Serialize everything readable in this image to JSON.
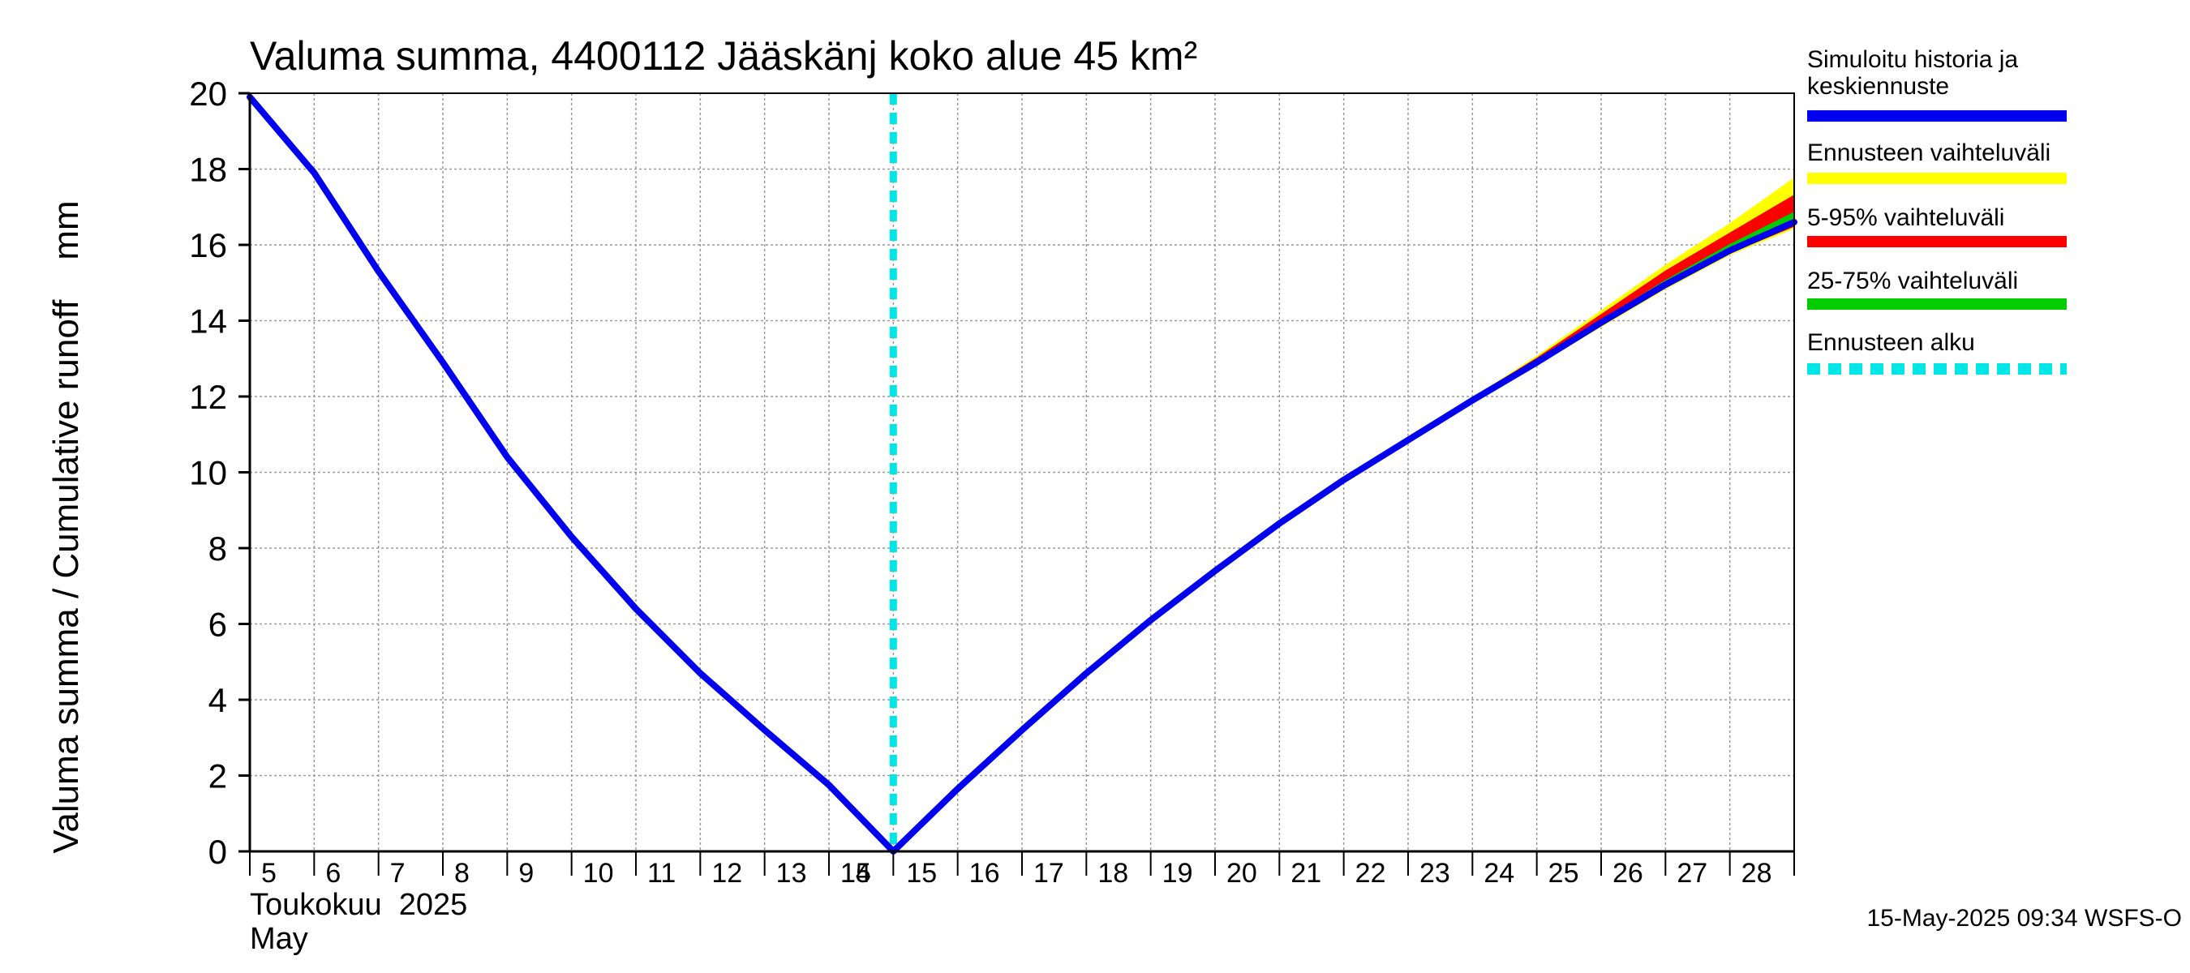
{
  "chart_data": {
    "type": "line",
    "title": "Valuma summa, 4400112 Jääskänj koko alue 45 km²",
    "ylabel": "Valuma summa / Cumulative runoff    mm",
    "ylim": [
      0,
      20
    ],
    "yticks": [
      0,
      2,
      4,
      6,
      8,
      10,
      12,
      14,
      16,
      18,
      20
    ],
    "xlim": [
      0,
      24
    ],
    "x_tick_labels": [
      "5",
      "6",
      "7",
      "8",
      "9",
      "10",
      "11",
      "12",
      "13",
      "14",
      "15",
      "15",
      "16",
      "17",
      "18",
      "19",
      "20",
      "21",
      "22",
      "23",
      "24",
      "25",
      "26",
      "27",
      "28"
    ],
    "x_period_label": "Toukokuu  2025",
    "x_period_label_en": "May",
    "grid": true,
    "legend_placement": "right",
    "forecast_start_x": 10,
    "series": [
      {
        "name": "Simuloitu historia ja keskiennuste",
        "color": "#0000ee",
        "x": [
          0,
          1,
          2,
          3,
          4,
          5,
          6,
          7,
          8,
          9,
          10,
          11,
          12,
          13,
          14,
          15,
          16,
          17,
          18,
          19,
          20,
          21,
          22,
          23,
          24
        ],
        "values": [
          19.9,
          17.9,
          15.3,
          12.9,
          10.4,
          8.3,
          6.4,
          4.7,
          3.2,
          1.75,
          0,
          1.65,
          3.2,
          4.7,
          6.1,
          7.4,
          8.65,
          9.8,
          10.85,
          11.9,
          12.9,
          13.95,
          14.95,
          15.85,
          16.6
        ],
        "legend_label_lines": [
          "Simuloitu historia ja",
          "keskiennuste"
        ]
      },
      {
        "name": "Ennusteen vaihteluväli",
        "color": "#ffff00",
        "x": [
          19,
          20,
          21,
          22,
          23,
          24
        ],
        "lower": [
          11.9,
          12.85,
          13.85,
          14.85,
          15.75,
          16.45
        ],
        "upper": [
          11.95,
          13.05,
          14.25,
          15.45,
          16.55,
          17.75
        ]
      },
      {
        "name": "5-95% vaihteluväli",
        "color": "#ff0000",
        "x": [
          19,
          20,
          21,
          22,
          23,
          24
        ],
        "lower": [
          11.9,
          12.9,
          13.9,
          14.9,
          15.8,
          16.5
        ],
        "upper": [
          11.95,
          13.0,
          14.15,
          15.3,
          16.3,
          17.3
        ]
      },
      {
        "name": "25-75% vaihteluväli",
        "color": "#00cc00",
        "x": [
          19,
          20,
          21,
          22,
          23,
          24
        ],
        "lower": [
          11.9,
          12.9,
          13.95,
          14.95,
          15.85,
          16.6
        ],
        "upper": [
          11.9,
          12.95,
          14.0,
          15.05,
          16.0,
          16.85
        ]
      }
    ],
    "legend": [
      {
        "label_lines": [
          "Simuloitu historia ja",
          "keskiennuste"
        ],
        "color": "#0000ee",
        "style": "solid"
      },
      {
        "label_lines": [
          "Ennusteen vaihteluväli"
        ],
        "color": "#ffff00",
        "style": "solid"
      },
      {
        "label_lines": [
          "5-95% vaihteluväli"
        ],
        "color": "#ff0000",
        "style": "solid"
      },
      {
        "label_lines": [
          "25-75% vaihteluväli"
        ],
        "color": "#00cc00",
        "style": "solid"
      },
      {
        "label_lines": [
          "Ennusteen alku"
        ],
        "color": "#00e5e5",
        "style": "dashed"
      }
    ]
  },
  "footer": {
    "timestamp": "15-May-2025 09:34 WSFS-O"
  }
}
